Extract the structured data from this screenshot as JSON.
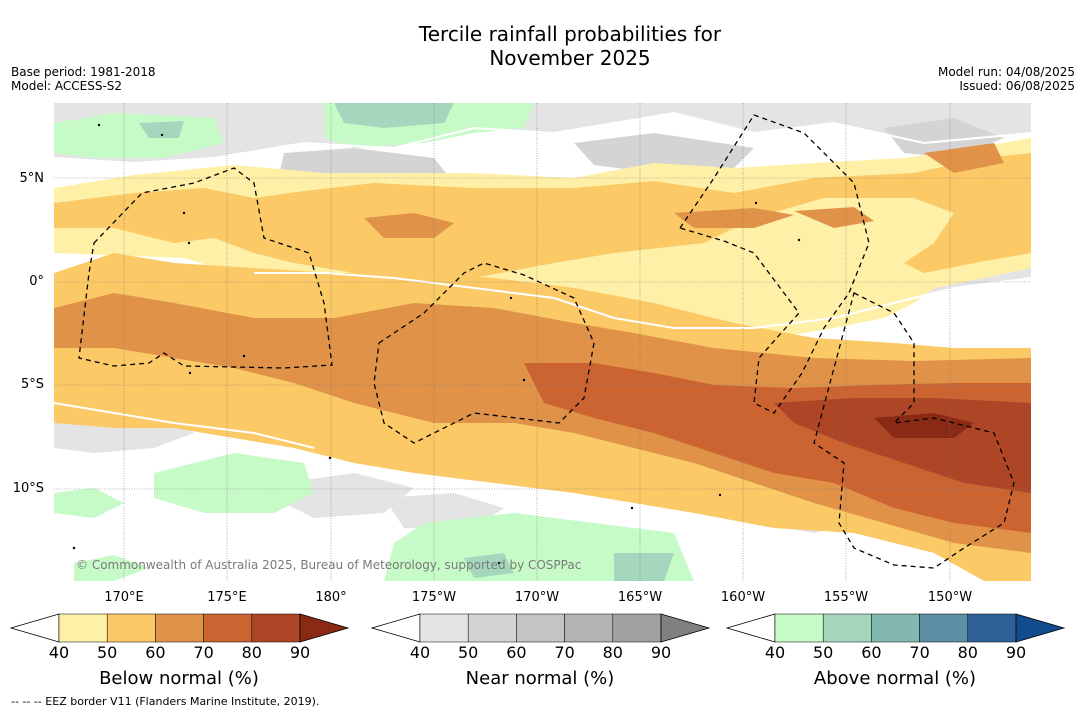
{
  "header": {
    "title_line1": "Tercile rainfall probabilities for",
    "title_line2": "November 2025",
    "base_period": "Base period: 1981-2018",
    "model": "Model: ACCESS-S2",
    "model_run": "Model run: 04/08/2025",
    "issued": "Issued: 06/08/2025"
  },
  "map": {
    "lat_labels": [
      "5°N",
      "0°",
      "5°S",
      "10°S"
    ],
    "lon_labels": [
      "170°E",
      "175°E",
      "180°",
      "175°W",
      "170°W",
      "165°W",
      "160°W",
      "155°W",
      "150°W"
    ],
    "copyright": "© Commonwealth of Australia 2025, Bureau of Meteorology, supported by COSPPac",
    "palette": {
      "below": [
        "#fff0a8",
        "#fbc965",
        "#e09348",
        "#cc6432",
        "#ad4626",
        "#8a2a15"
      ],
      "near": [
        "#e4e4e4",
        "#d4d4d4",
        "#c4c4c4",
        "#b3b3b3",
        "#a1a1a1",
        "#808080"
      ],
      "above": [
        "#c6fbc8",
        "#a4d7bd",
        "#83b8b1",
        "#5b8fa4",
        "#2f6199",
        "#124c8c"
      ]
    }
  },
  "colorbars": [
    {
      "label": "Below normal (%)",
      "ticks": [
        "40",
        "50",
        "60",
        "70",
        "80",
        "90"
      ]
    },
    {
      "label": "Near normal (%)",
      "ticks": [
        "40",
        "50",
        "60",
        "70",
        "80",
        "90"
      ]
    },
    {
      "label": "Above normal (%)",
      "ticks": [
        "40",
        "50",
        "60",
        "70",
        "80",
        "90"
      ]
    }
  ],
  "footer": {
    "legend_text": "--  --  -- EEZ border V11 (Flanders Marine Institute, 2019)."
  }
}
